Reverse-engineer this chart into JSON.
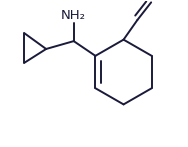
{
  "background_color": "#ffffff",
  "line_color": "#1a1a3a",
  "line_width": 1.4,
  "nh2_label": "NH₂",
  "font_size": 9.5
}
